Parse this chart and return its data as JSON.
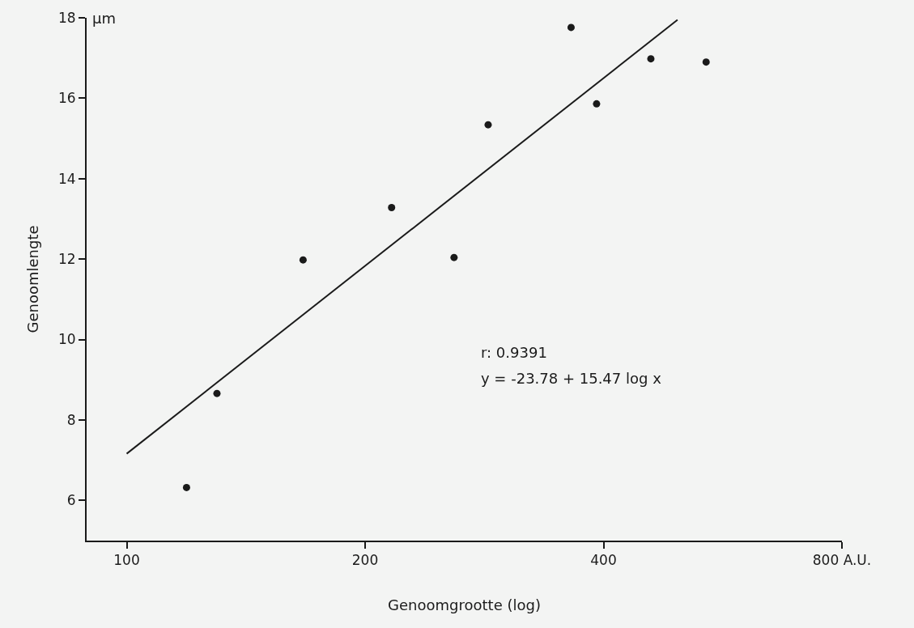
{
  "chart_data": {
    "type": "scatter",
    "xlabel": "Genoomgrootte (log)",
    "ylabel": "Genoomlengte",
    "annotations": [
      "µm",
      "r: 0.9391",
      "y = -23.78 + 15.47 log x"
    ],
    "log": "x",
    "xlim": [
      89,
      800
    ],
    "xticks": [
      100,
      200,
      400,
      {
        "value": 800,
        "label": "800 A.U."
      }
    ],
    "ylim": [
      5,
      18
    ],
    "yticks": [
      6,
      8,
      10,
      12,
      14,
      16,
      18
    ],
    "grid": false,
    "marker": "circle",
    "series": [
      {
        "color": "#1a1a1a",
        "x": [
          119,
          130,
          167,
          216,
          259,
          286,
          364,
          392,
          459,
          539
        ],
        "values": [
          6.32,
          8.66,
          11.98,
          13.28,
          12.04,
          15.34,
          17.76,
          15.86,
          16.98,
          16.9
        ]
      },
      {
        "type": "line",
        "color": "#1a1a1a",
        "line_style": "solid",
        "marker": "none",
        "x": [
          100,
          496
        ],
        "values": [
          7.16,
          17.95
        ]
      }
    ]
  }
}
